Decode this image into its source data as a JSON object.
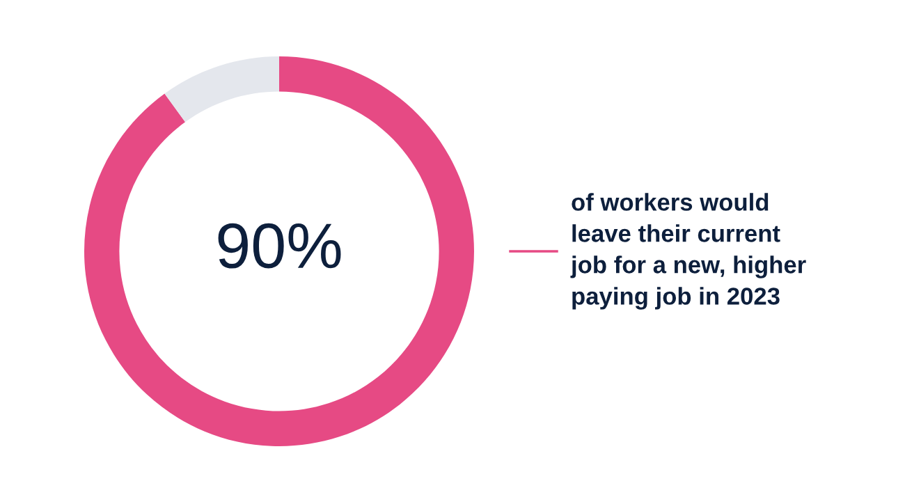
{
  "chart_data": {
    "type": "donut",
    "categories": [
      null,
      null
    ],
    "values": [
      90,
      10
    ],
    "colors": [
      "#e64a84",
      "#e4e7ed"
    ],
    "value_labels": [
      "90%",
      null
    ],
    "annotations": [
      "of workers would\nleave their current\njob for a new, higher\npaying job in 2023"
    ],
    "legend": false
  }
}
